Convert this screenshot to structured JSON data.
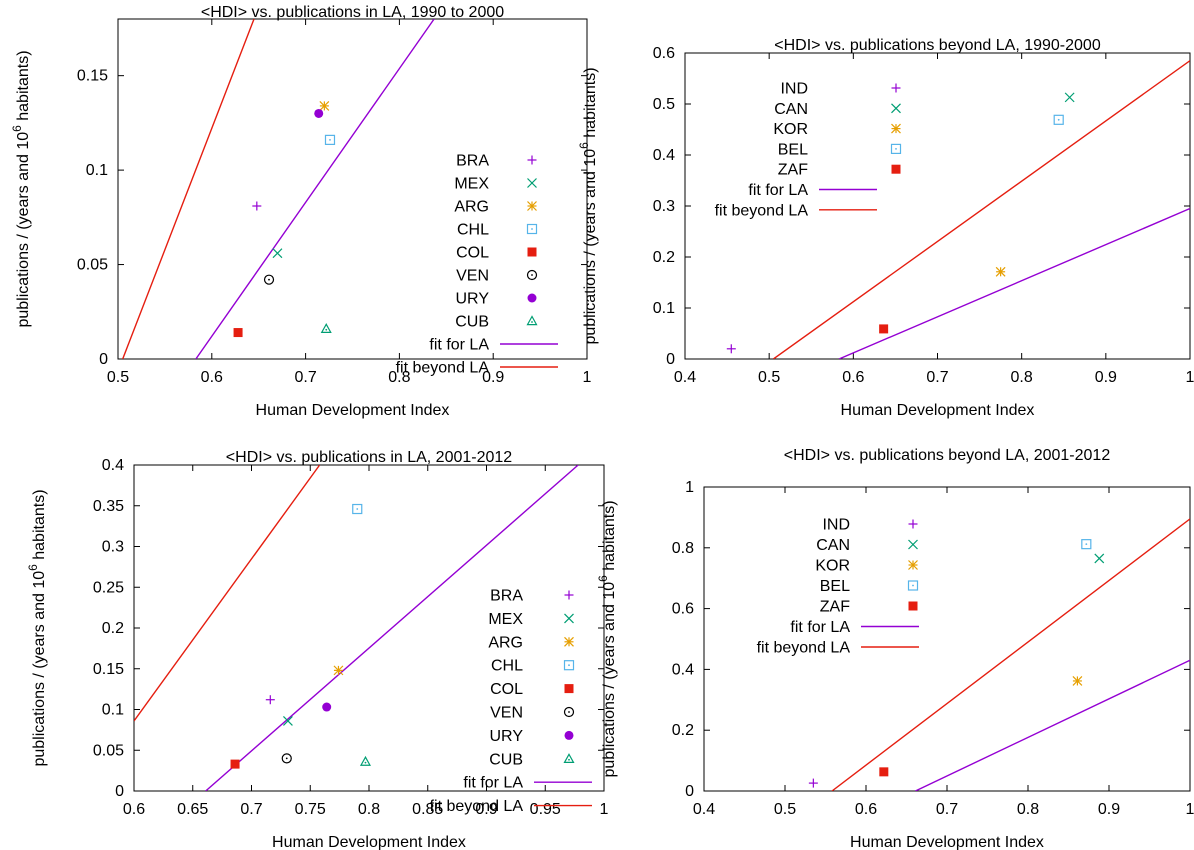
{
  "chart_data": [
    {
      "type": "scatter",
      "title": "<HDI>  vs. publications in LA, 1990 to 2000",
      "xlabel": "Human Development Index",
      "ylabel": "publications / (years and 10",
      "ylabel_sup": "6",
      "ylabel_tail": " habitants)",
      "xlim": [
        0.5,
        1.0
      ],
      "ylim": [
        0,
        0.18
      ],
      "xticks": [
        0.5,
        0.6,
        0.7,
        0.8,
        0.9,
        1.0
      ],
      "xtick_labels": [
        "0.5",
        "0.6",
        "0.7",
        "0.8",
        "0.9",
        "1"
      ],
      "yticks": [
        0,
        0.05,
        0.1,
        0.15
      ],
      "ytick_labels": [
        "0",
        "0.05",
        "0.1",
        "0.15"
      ],
      "legend_position": "right",
      "grid": false,
      "points": [
        {
          "name": "BRA",
          "marker": "plus",
          "color": "#9400d3",
          "x": 0.648,
          "y": 0.081
        },
        {
          "name": "MEX",
          "marker": "cross",
          "color": "#009e73",
          "x": 0.67,
          "y": 0.056
        },
        {
          "name": "ARG",
          "marker": "star",
          "color": "#e69f00",
          "x": 0.72,
          "y": 0.134
        },
        {
          "name": "CHL",
          "marker": "box",
          "color": "#56b4e9",
          "x": 0.726,
          "y": 0.116
        },
        {
          "name": "COL",
          "marker": "filled-box",
          "color": "#e51e10",
          "x": 0.628,
          "y": 0.014
        },
        {
          "name": "VEN",
          "marker": "circle",
          "color": "#000000",
          "x": 0.661,
          "y": 0.042
        },
        {
          "name": "URY",
          "marker": "filled-circle",
          "color": "#9400d3",
          "x": 0.714,
          "y": 0.13
        },
        {
          "name": "CUB",
          "marker": "triangle",
          "color": "#009e73",
          "x": 0.722,
          "y": 0.016
        }
      ],
      "fits": [
        {
          "name": "fit for LA",
          "color": "#9400d3",
          "x": [
            0.583,
            0.837
          ],
          "y": [
            0,
            0.18
          ]
        },
        {
          "name": "fit beyond LA",
          "color": "#e51e10",
          "x": [
            0.505,
            0.645
          ],
          "y": [
            0,
            0.18
          ]
        }
      ]
    },
    {
      "type": "scatter",
      "title": "<HDI>  vs. publications beyond LA, 1990-2000",
      "xlabel": "Human Development Index",
      "ylabel": "publications / (years and 10",
      "ylabel_sup": "6",
      "ylabel_tail": " habitants)",
      "xlim": [
        0.4,
        1.0
      ],
      "ylim": [
        0,
        0.6
      ],
      "xticks": [
        0.4,
        0.5,
        0.6,
        0.7,
        0.8,
        0.9,
        1.0
      ],
      "xtick_labels": [
        "0.4",
        "0.5",
        "0.6",
        "0.7",
        "0.8",
        "0.9",
        "1"
      ],
      "yticks": [
        0,
        0.1,
        0.2,
        0.3,
        0.4,
        0.5,
        0.6
      ],
      "ytick_labels": [
        "0",
        "0.1",
        "0.2",
        "0.3",
        "0.4",
        "0.5",
        "0.6"
      ],
      "legend_position": "top-left",
      "grid": false,
      "points": [
        {
          "name": "IND",
          "marker": "plus",
          "color": "#9400d3",
          "x": 0.455,
          "y": 0.02
        },
        {
          "name": "CAN",
          "marker": "cross",
          "color": "#009e73",
          "x": 0.857,
          "y": 0.513
        },
        {
          "name": "KOR",
          "marker": "star",
          "color": "#e69f00",
          "x": 0.775,
          "y": 0.171
        },
        {
          "name": "BEL",
          "marker": "box",
          "color": "#56b4e9",
          "x": 0.844,
          "y": 0.469
        },
        {
          "name": "ZAF",
          "marker": "filled-box",
          "color": "#e51e10",
          "x": 0.636,
          "y": 0.059
        }
      ],
      "fits": [
        {
          "name": "fit for LA",
          "color": "#9400d3",
          "x": [
            0.583,
            1.0
          ],
          "y": [
            0,
            0.295
          ]
        },
        {
          "name": "fit beyond LA",
          "color": "#e51e10",
          "x": [
            0.505,
            1.0
          ],
          "y": [
            0,
            0.585
          ]
        }
      ]
    },
    {
      "type": "scatter",
      "title": "<HDI>  vs. publications in LA, 2001-2012",
      "xlabel": "Human Development Index",
      "ylabel": "publications / (years and 10",
      "ylabel_sup": "6",
      "ylabel_tail": " habitants)",
      "xlim": [
        0.6,
        1.0
      ],
      "ylim": [
        0,
        0.4
      ],
      "xticks": [
        0.6,
        0.65,
        0.7,
        0.75,
        0.8,
        0.85,
        0.9,
        0.95,
        1.0
      ],
      "xtick_labels": [
        "0.6",
        "0.65",
        "0.7",
        "0.75",
        "0.8",
        "0.85",
        "0.9",
        "0.95",
        "1"
      ],
      "yticks": [
        0,
        0.05,
        0.1,
        0.15,
        0.2,
        0.25,
        0.3,
        0.35,
        0.4
      ],
      "ytick_labels": [
        "0",
        "0.05",
        "0.1",
        "0.15",
        "0.2",
        "0.25",
        "0.3",
        "0.35",
        "0.4"
      ],
      "legend_position": "bottom-right",
      "grid": false,
      "points": [
        {
          "name": "BRA",
          "marker": "plus",
          "color": "#9400d3",
          "x": 0.716,
          "y": 0.112
        },
        {
          "name": "MEX",
          "marker": "cross",
          "color": "#009e73",
          "x": 0.731,
          "y": 0.086
        },
        {
          "name": "ARG",
          "marker": "star",
          "color": "#e69f00",
          "x": 0.774,
          "y": 0.148
        },
        {
          "name": "CHL",
          "marker": "box",
          "color": "#56b4e9",
          "x": 0.79,
          "y": 0.346
        },
        {
          "name": "COL",
          "marker": "filled-box",
          "color": "#e51e10",
          "x": 0.686,
          "y": 0.033
        },
        {
          "name": "VEN",
          "marker": "circle",
          "color": "#000000",
          "x": 0.73,
          "y": 0.04
        },
        {
          "name": "URY",
          "marker": "filled-circle",
          "color": "#9400d3",
          "x": 0.764,
          "y": 0.103
        },
        {
          "name": "CUB",
          "marker": "triangle",
          "color": "#009e73",
          "x": 0.797,
          "y": 0.036
        }
      ],
      "fits": [
        {
          "name": "fit for LA",
          "color": "#9400d3",
          "x": [
            0.661,
            0.978
          ],
          "y": [
            0,
            0.4
          ]
        },
        {
          "name": "fit beyond LA",
          "color": "#e51e10",
          "x": [
            0.6,
            0.758
          ],
          "y": [
            0.086,
            0.4
          ]
        }
      ]
    },
    {
      "type": "scatter",
      "title": "<HDI>  vs. publications beyond LA, 2001-2012",
      "xlabel": "Human Development Index",
      "ylabel": "publications / (years and 10",
      "ylabel_sup": "6",
      "ylabel_tail": " habitants)",
      "xlim": [
        0.4,
        1.0
      ],
      "ylim": [
        0,
        1.0
      ],
      "xticks": [
        0.4,
        0.5,
        0.6,
        0.7,
        0.8,
        0.9,
        1.0
      ],
      "xtick_labels": [
        "0.4",
        "0.5",
        "0.6",
        "0.7",
        "0.8",
        "0.9",
        "1"
      ],
      "yticks": [
        0,
        0.2,
        0.4,
        0.6,
        0.8,
        1.0
      ],
      "ytick_labels": [
        "0",
        "0.2",
        "0.4",
        "0.6",
        "0.8",
        "1"
      ],
      "legend_position": "top-left",
      "grid": false,
      "points": [
        {
          "name": "IND",
          "marker": "plus",
          "color": "#9400d3",
          "x": 0.535,
          "y": 0.026
        },
        {
          "name": "CAN",
          "marker": "cross",
          "color": "#009e73",
          "x": 0.888,
          "y": 0.765
        },
        {
          "name": "KOR",
          "marker": "star",
          "color": "#e69f00",
          "x": 0.861,
          "y": 0.362
        },
        {
          "name": "BEL",
          "marker": "box",
          "color": "#56b4e9",
          "x": 0.872,
          "y": 0.812
        },
        {
          "name": "ZAF",
          "marker": "filled-box",
          "color": "#e51e10",
          "x": 0.622,
          "y": 0.063
        }
      ],
      "fits": [
        {
          "name": "fit for LA",
          "color": "#9400d3",
          "x": [
            0.661,
            1.0
          ],
          "y": [
            0,
            0.43
          ]
        },
        {
          "name": "fit beyond LA",
          "color": "#e51e10",
          "x": [
            0.558,
            1.0
          ],
          "y": [
            0,
            0.895
          ]
        }
      ]
    }
  ]
}
